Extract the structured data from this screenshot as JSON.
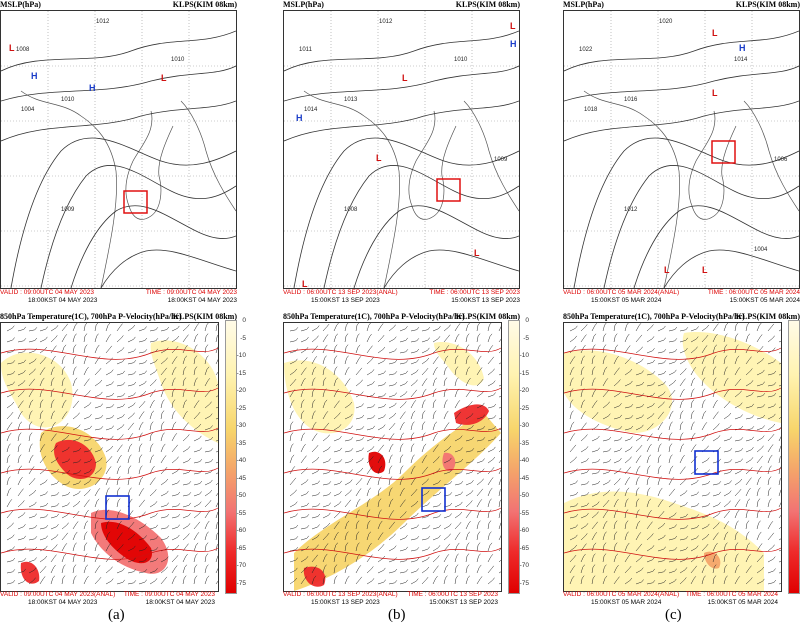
{
  "panels_top": [
    {
      "title": "MSLP(hPa)",
      "model": "KLPS(KIM 08km)",
      "valid": "VALID : 09:00UTC 04 MAY 2023",
      "time": "TIME : 09:00UTC 04 MAY 2023",
      "kst_left": "18:00KST 04 MAY 2023",
      "kst_right": "18:00KST 04 MAY 2023"
    },
    {
      "title": "MSLP(hPa)",
      "model": "KLPS(KIM 08km)",
      "valid": "VALID : 06:00UTC 13 SEP 2023(ANAL)",
      "time": "TIME : 06:00UTC 13 SEP 2023",
      "kst_left": "15:00KST 13 SEP 2023",
      "kst_right": "15:00KST 13 SEP 2023"
    },
    {
      "title": "MSLP(hPa)",
      "model": "KLPS(KIM 08km)",
      "valid": "VALID : 06:00UTC 05 MAR 2024(ANAL)",
      "time": "TIME : 06:00UTC 05 MAR 2024",
      "kst_left": "15:00KST 05 MAR 2024",
      "kst_right": "15:00KST 05 MAR 2024"
    }
  ],
  "panels_bottom": [
    {
      "title": "850hPa Temperature(1C), 700hPa P-Velocity(hPa/hr)",
      "model": "KLPS(KIM 08km)",
      "valid": "VALID : 09:00UTC 04 MAY 2023(ANAL)",
      "time": "TIME : 09:00UTC 04 MAY 2023",
      "kst_left": "18:00KST 04 MAY 2023",
      "kst_right": "18:00KST 04 MAY 2023"
    },
    {
      "title": "850hPa Temperature(1C), 700hPa P-Velocity(hPa/hr)",
      "model": "KLPS(KIM 08km)",
      "valid": "VALID : 06:00UTC 13 SEP 2023(ANAL)",
      "time": "TIME : 06:00UTC 13 SEP 2023",
      "kst_left": "15:00KST 13 SEP 2023",
      "kst_right": "15:00KST 13 SEP 2023"
    },
    {
      "title": "850hPa Temperature(1C), 700hPa P-Velocity(hPa/hr)",
      "model": "KLPS(KIM 08km)",
      "valid": "VALID : 06:00UTC 05 MAR 2024(ANAL)",
      "time": "TIME : 06:00UTC 05 MAR 2024",
      "kst_left": "15:00KST 05 MAR 2024",
      "kst_right": "15:00KST 05 MAR 2024"
    }
  ],
  "colorbar_ticks": [
    "0",
    "-5",
    "-10",
    "-15",
    "-20",
    "-25",
    "-30",
    "-35",
    "-40",
    "-45",
    "-50",
    "-55",
    "-60",
    "-65",
    "-70",
    "-75"
  ],
  "captions": [
    "(a)",
    "(b)",
    "(c)"
  ],
  "pressure_labels_a": [
    "1012",
    "1008",
    "1004",
    "1010",
    "1010",
    "1009"
  ],
  "pressure_labels_b": [
    "1012",
    "1011",
    "1014",
    "1013",
    "1010",
    "1008",
    "1009"
  ],
  "pressure_labels_c": [
    "1020",
    "1022",
    "1018",
    "1016",
    "1014",
    "1012",
    "1006",
    "1004"
  ],
  "colors": {
    "isobar": "#333333",
    "low": "#d01010",
    "high": "#1a3cc8",
    "box_top": "#e01010",
    "box_bottom": "#1030d0"
  }
}
